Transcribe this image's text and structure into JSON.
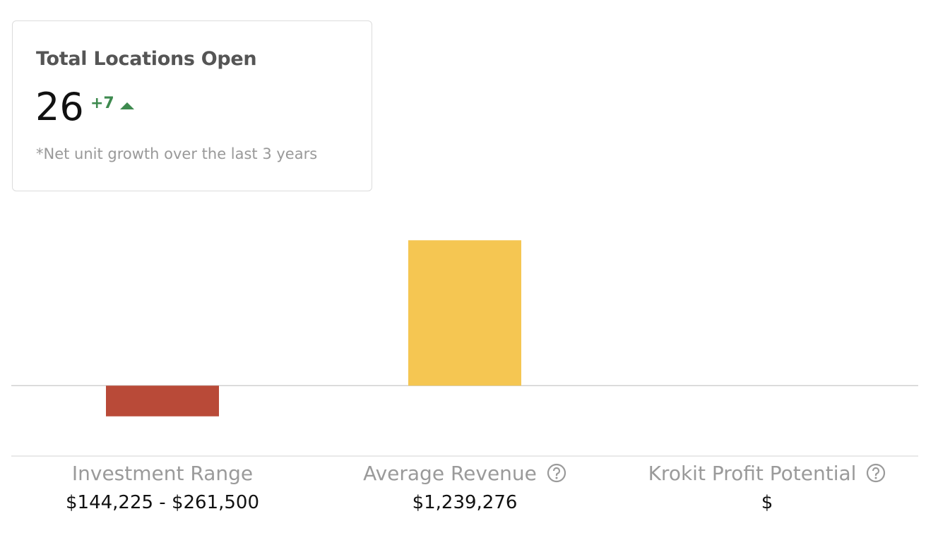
{
  "card": {
    "title": "Total Locations Open",
    "value": 26,
    "delta": "+7",
    "note": "*Net unit growth over the last 3 years"
  },
  "chart_data": {
    "type": "bar",
    "categories": [
      "Investment Range",
      "Average Revenue",
      "Krokit Profit Potential"
    ],
    "values": [
      -261500,
      1239276,
      null
    ],
    "value_labels": [
      "$144,225 - $261,500",
      "$1,239,276",
      "$"
    ],
    "colors": [
      "#b94a38",
      "#f5c652",
      "#9dbf8c"
    ],
    "ylim": [
      -600000,
      1500000
    ]
  }
}
